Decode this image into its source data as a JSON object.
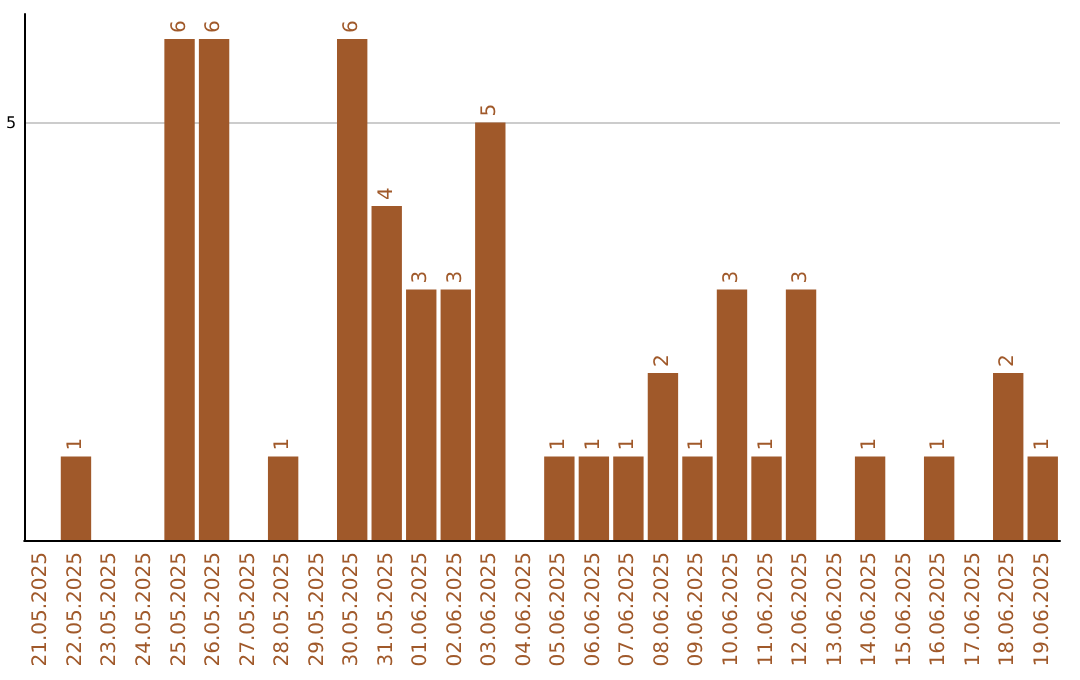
{
  "chart_data": {
    "type": "bar",
    "categories": [
      "21.05.2025",
      "22.05.2025",
      "23.05.2025",
      "24.05.2025",
      "25.05.2025",
      "26.05.2025",
      "27.05.2025",
      "28.05.2025",
      "29.05.2025",
      "30.05.2025",
      "31.05.2025",
      "01.06.2025",
      "02.06.2025",
      "03.06.2025",
      "04.06.2025",
      "05.06.2025",
      "06.06.2025",
      "07.06.2025",
      "08.06.2025",
      "09.06.2025",
      "10.06.2025",
      "11.06.2025",
      "12.06.2025",
      "13.06.2025",
      "14.06.2025",
      "15.06.2025",
      "16.06.2025",
      "17.06.2025",
      "18.06.2025",
      "19.06.2025"
    ],
    "series": [
      {
        "color": "#a0592a",
        "values": [
          0,
          1,
          0,
          0,
          6,
          6,
          0,
          1,
          0,
          6,
          4,
          3,
          3,
          5,
          0,
          1,
          1,
          1,
          2,
          1,
          3,
          1,
          3,
          0,
          1,
          0,
          1,
          0,
          2,
          1
        ],
        "value_labels": [
          null,
          "1",
          null,
          null,
          "6",
          "6",
          null,
          "1",
          null,
          "6",
          "4",
          "3",
          "3",
          "5",
          null,
          "1",
          "1",
          "1",
          "2",
          "1",
          "3",
          "1",
          "3",
          null,
          "1",
          null,
          "1",
          null,
          "2",
          "1"
        ]
      }
    ],
    "ylim": [
      0,
      6.3
    ],
    "yticks": [
      {
        "value": 0,
        "label": null
      },
      5
    ],
    "grid": "y"
  }
}
